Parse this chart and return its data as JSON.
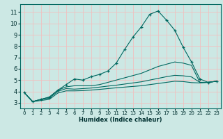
{
  "xlabel": "Humidex (Indice chaleur)",
  "xlim": [
    -0.5,
    23.5
  ],
  "ylim": [
    2.5,
    11.7
  ],
  "xticks": [
    0,
    1,
    2,
    3,
    4,
    5,
    6,
    7,
    8,
    9,
    10,
    11,
    12,
    13,
    14,
    15,
    16,
    17,
    18,
    19,
    20,
    21,
    22,
    23
  ],
  "yticks": [
    3,
    4,
    5,
    6,
    7,
    8,
    9,
    10,
    11
  ],
  "background_color": "#cce8e4",
  "grid_color": "#f0c0c0",
  "line_color": "#006860",
  "line1_y": [
    3.9,
    3.1,
    3.3,
    3.5,
    4.1,
    4.6,
    5.1,
    5.0,
    5.3,
    5.5,
    5.8,
    6.5,
    7.7,
    8.8,
    9.7,
    10.8,
    11.1,
    10.3,
    9.4,
    7.9,
    6.6,
    5.1,
    4.8,
    4.9
  ],
  "line2_y": [
    3.9,
    3.1,
    3.3,
    3.5,
    4.1,
    4.4,
    4.5,
    4.5,
    4.5,
    4.6,
    4.8,
    5.0,
    5.2,
    5.4,
    5.6,
    5.9,
    6.2,
    6.4,
    6.6,
    6.5,
    6.3,
    4.8,
    4.8,
    4.9
  ],
  "line3_y": [
    3.9,
    3.1,
    3.3,
    3.4,
    4.0,
    4.25,
    4.2,
    4.25,
    4.3,
    4.38,
    4.47,
    4.55,
    4.65,
    4.75,
    4.85,
    5.0,
    5.15,
    5.3,
    5.42,
    5.38,
    5.28,
    4.8,
    4.8,
    4.9
  ],
  "line4_y": [
    3.9,
    3.1,
    3.2,
    3.3,
    3.85,
    4.05,
    4.05,
    4.07,
    4.12,
    4.18,
    4.25,
    4.32,
    4.38,
    4.44,
    4.5,
    4.6,
    4.7,
    4.8,
    4.9,
    4.87,
    4.78,
    4.75,
    4.8,
    4.9
  ]
}
